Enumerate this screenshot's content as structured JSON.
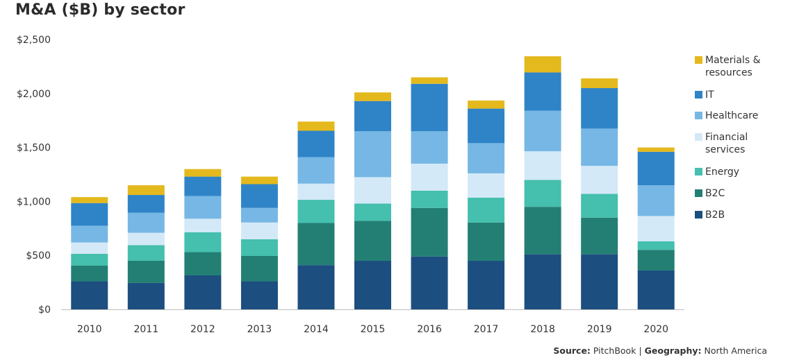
{
  "title": "M&A ($B) by sector",
  "source": {
    "label1": "Source:",
    "value1": "PitchBook",
    "separator": "|",
    "label2": "Geography:",
    "value2": "North America"
  },
  "chart_data": {
    "type": "bar",
    "stacked": true,
    "title": "M&A ($B) by sector",
    "xlabel": "",
    "ylabel": "",
    "ylim": [
      0,
      2500
    ],
    "yticks": [
      0,
      500,
      1000,
      1500,
      2000,
      2500
    ],
    "ytick_labels": [
      "$0",
      "$500",
      "$1,000",
      "$1,500",
      "$2,000",
      "$2,500"
    ],
    "grid": false,
    "legend_position": "right",
    "categories": [
      "2010",
      "2011",
      "2012",
      "2013",
      "2014",
      "2015",
      "2016",
      "2017",
      "2018",
      "2019",
      "2020"
    ],
    "series": [
      {
        "name": "B2B",
        "color": "#1c4e80",
        "values": [
          260,
          245,
          315,
          260,
          410,
          450,
          490,
          450,
          510,
          510,
          360
        ]
      },
      {
        "name": "B2C",
        "color": "#237f73",
        "values": [
          145,
          205,
          215,
          235,
          390,
          370,
          450,
          355,
          440,
          340,
          190
        ]
      },
      {
        "name": "Energy",
        "color": "#45bfae",
        "values": [
          110,
          145,
          185,
          155,
          215,
          160,
          160,
          230,
          250,
          220,
          80
        ]
      },
      {
        "name": "Financial services",
        "color": "#d4e9f7",
        "values": [
          105,
          115,
          125,
          155,
          150,
          245,
          250,
          225,
          265,
          260,
          235
        ]
      },
      {
        "name": "Healthcare",
        "color": "#76b7e5",
        "values": [
          155,
          185,
          210,
          135,
          245,
          425,
          300,
          280,
          375,
          345,
          285
        ]
      },
      {
        "name": "IT",
        "color": "#2f84c7",
        "values": [
          210,
          165,
          180,
          220,
          245,
          280,
          440,
          320,
          355,
          375,
          310
        ]
      },
      {
        "name": "Materials & resources",
        "color": "#e4b91d",
        "values": [
          55,
          90,
          70,
          70,
          85,
          80,
          60,
          75,
          150,
          90,
          40
        ]
      }
    ]
  },
  "legend": [
    {
      "label": "Materials & resources",
      "color": "#e4b91d"
    },
    {
      "label": "IT",
      "color": "#2f84c7"
    },
    {
      "label": "Healthcare",
      "color": "#76b7e5"
    },
    {
      "label": "Financial services",
      "color": "#d4e9f7"
    },
    {
      "label": "Energy",
      "color": "#45bfae"
    },
    {
      "label": "B2C",
      "color": "#237f73"
    },
    {
      "label": "B2B",
      "color": "#1c4e80"
    }
  ]
}
